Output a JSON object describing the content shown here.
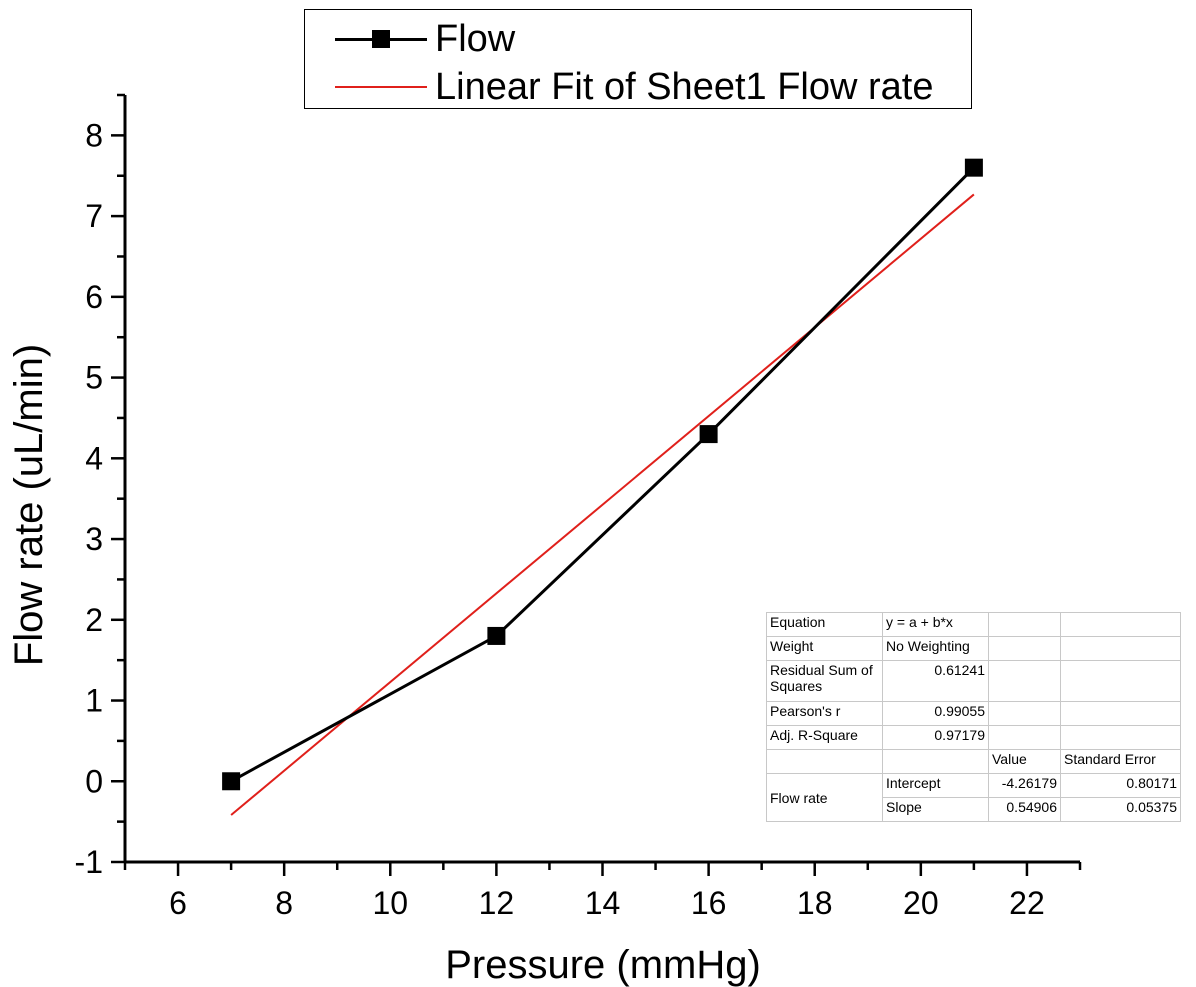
{
  "chart_data": {
    "type": "line",
    "xlabel": "Pressure (mmHg)",
    "ylabel": "Flow rate (uL/min)",
    "xlim": [
      5,
      23
    ],
    "ylim": [
      -1,
      8.5
    ],
    "xticks": [
      6,
      8,
      10,
      12,
      14,
      16,
      18,
      20,
      22
    ],
    "yticks": [
      -1,
      0,
      1,
      2,
      3,
      4,
      5,
      6,
      7,
      8
    ],
    "grid": false,
    "legend_position": "top",
    "series": [
      {
        "name": "Flow",
        "marker": "square",
        "color": "#000000",
        "x": [
          7,
          12,
          16,
          21
        ],
        "y": [
          0,
          1.8,
          4.3,
          7.6
        ]
      },
      {
        "name": "Linear Fit of Sheet1 Flow rate",
        "marker": "none",
        "color": "#e0201b",
        "x": [
          7,
          21
        ],
        "y": [
          -0.41837,
          7.26847
        ]
      }
    ]
  },
  "fit_table": {
    "rows": [
      [
        "Equation",
        "y = a + b*x",
        "",
        ""
      ],
      [
        "Weight",
        "No Weighting",
        "",
        ""
      ],
      [
        "Residual Sum of Squares",
        "0.61241",
        "",
        ""
      ],
      [
        "Pearson's r",
        "0.99055",
        "",
        ""
      ],
      [
        "Adj. R-Square",
        "0.97179",
        "",
        ""
      ],
      [
        "",
        "",
        "Value",
        "Standard Error"
      ]
    ],
    "group_label": "Flow rate",
    "params": [
      [
        "Intercept",
        "-4.26179",
        "0.80171"
      ],
      [
        "Slope",
        "0.54906",
        "0.05375"
      ]
    ]
  }
}
